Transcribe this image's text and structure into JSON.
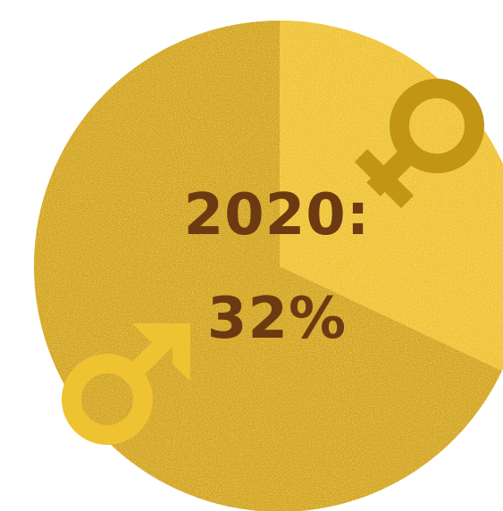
{
  "chart_data": {
    "type": "pie",
    "title": "2020:",
    "value_label": "32%",
    "slices": [
      {
        "name": "female",
        "value": 32,
        "color": "#efc231",
        "icon": "female-symbol-icon"
      },
      {
        "name": "male",
        "value": 68,
        "color": "#d3a41d",
        "icon": "male-symbol-icon"
      }
    ]
  },
  "colors": {
    "male_slice": "#d3a41d",
    "female_slice": "#efc231",
    "female_symbol": "#c39514",
    "male_symbol": "#efc231",
    "text": "#6b3a12"
  }
}
